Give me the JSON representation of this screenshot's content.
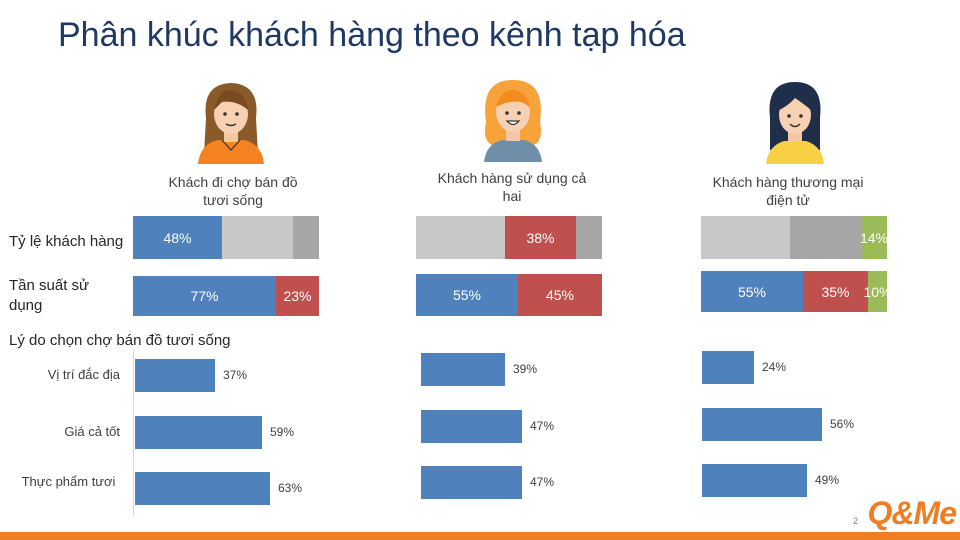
{
  "title": "Phân khúc khách hàng theo kênh tạp hóa",
  "personas": [
    {
      "label": "Khách đi chợ bán đồ tươi sống"
    },
    {
      "label": "Khách hàng sử dụng cả hai"
    },
    {
      "label": "Khách hàng thương mại điện tử"
    }
  ],
  "row_labels": {
    "share": "Tỷ lệ khách hàng",
    "frequency": "Tần suất sử dụng",
    "reasons_heading": "Lý do chọn chợ bán đồ tươi sống"
  },
  "colors": {
    "blue": "#4f81bd",
    "red": "#c0504d",
    "green": "#9bbb59",
    "light_gray": "#c8c8c8",
    "dark_gray": "#a6a6a6",
    "accent": "#ef7d22",
    "title": "#1f3864"
  },
  "page_number": "2",
  "logo_text": "Q&Me",
  "chart_data": [
    {
      "type": "bar",
      "stacked": true,
      "orientation": "horizontal",
      "name": "share",
      "groups": [
        {
          "segments": [
            {
              "value": 48,
              "label": "48%",
              "color": "#4f81bd"
            },
            {
              "value": 38,
              "label": "",
              "color": "#c8c8c8"
            },
            {
              "value": 14,
              "label": "",
              "color": "#a6a6a6"
            }
          ]
        },
        {
          "segments": [
            {
              "value": 48,
              "label": "",
              "color": "#c8c8c8"
            },
            {
              "value": 38,
              "label": "38%",
              "color": "#c0504d"
            },
            {
              "value": 14,
              "label": "",
              "color": "#a6a6a6"
            }
          ]
        },
        {
          "segments": [
            {
              "value": 48,
              "label": "",
              "color": "#c8c8c8"
            },
            {
              "value": 38,
              "label": "",
              "color": "#a6a6a6"
            },
            {
              "value": 14,
              "label": "14%",
              "color": "#9bbb59"
            }
          ]
        }
      ]
    },
    {
      "type": "bar",
      "stacked": true,
      "orientation": "horizontal",
      "name": "frequency",
      "groups": [
        {
          "segments": [
            {
              "value": 77,
              "label": "77%",
              "color": "#4f81bd"
            },
            {
              "value": 23,
              "label": "23%",
              "color": "#c0504d"
            }
          ]
        },
        {
          "segments": [
            {
              "value": 55,
              "label": "55%",
              "color": "#4f81bd"
            },
            {
              "value": 45,
              "label": "45%",
              "color": "#c0504d"
            }
          ]
        },
        {
          "segments": [
            {
              "value": 55,
              "label": "55%",
              "color": "#4f81bd"
            },
            {
              "value": 35,
              "label": "35%",
              "color": "#c0504d"
            },
            {
              "value": 10,
              "label": "10%",
              "color": "#9bbb59"
            }
          ]
        }
      ]
    },
    {
      "type": "bar",
      "orientation": "horizontal",
      "name": "reasons",
      "categories": [
        "Vị trí đắc địa",
        "Giá cả tốt",
        "Thực phẩm tươi"
      ],
      "series": [
        {
          "values": [
            37,
            59,
            63
          ],
          "labels": [
            "37%",
            "59%",
            "63%"
          ]
        },
        {
          "values": [
            39,
            47,
            47
          ],
          "labels": [
            "39%",
            "47%",
            "47%"
          ]
        },
        {
          "values": [
            24,
            56,
            49
          ],
          "labels": [
            "24%",
            "56%",
            "49%"
          ]
        }
      ]
    }
  ]
}
